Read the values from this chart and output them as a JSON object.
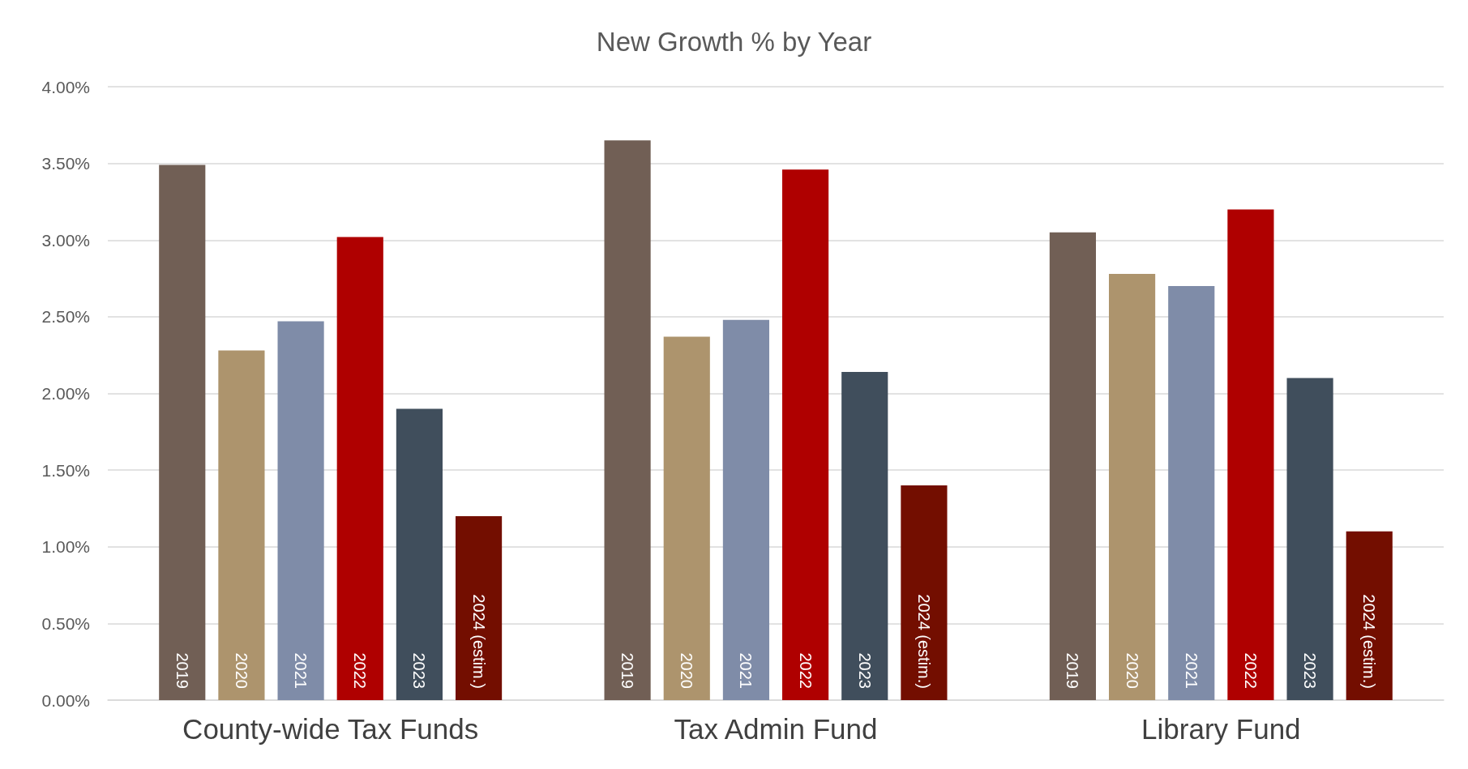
{
  "chart_data": {
    "type": "bar",
    "title": "New Growth % by Year",
    "categories": [
      "County-wide Tax Funds",
      "Tax Admin Fund",
      "Library Fund"
    ],
    "series": [
      {
        "name": "2019",
        "color": "#715f55",
        "values": [
          3.49,
          3.65,
          3.05
        ]
      },
      {
        "name": "2020",
        "color": "#ad946d",
        "values": [
          2.28,
          2.37,
          2.78
        ]
      },
      {
        "name": "2021",
        "color": "#7f8ca8",
        "values": [
          2.47,
          2.48,
          2.7
        ]
      },
      {
        "name": "2022",
        "color": "#af0000",
        "values": [
          3.02,
          3.46,
          3.2
        ]
      },
      {
        "name": "2023",
        "color": "#404e5c",
        "values": [
          1.9,
          2.14,
          2.1
        ]
      },
      {
        "name": "2024 (estim.)",
        "color": "#730e00",
        "values": [
          1.2,
          1.4,
          1.1
        ]
      }
    ],
    "ylim": [
      0,
      4
    ],
    "yticks": [
      {
        "value": 0,
        "label": "0.00%"
      },
      {
        "value": 0.5,
        "label": "0.50%"
      },
      {
        "value": 1,
        "label": "1.00%"
      },
      {
        "value": 1.5,
        "label": "1.50%"
      },
      {
        "value": 2,
        "label": "2.00%"
      },
      {
        "value": 2.5,
        "label": "2.50%"
      },
      {
        "value": 3,
        "label": "3.00%"
      },
      {
        "value": 3.5,
        "label": "3.50%"
      },
      {
        "value": 4,
        "label": "4.00%"
      }
    ],
    "grid": "y",
    "legend": false
  }
}
